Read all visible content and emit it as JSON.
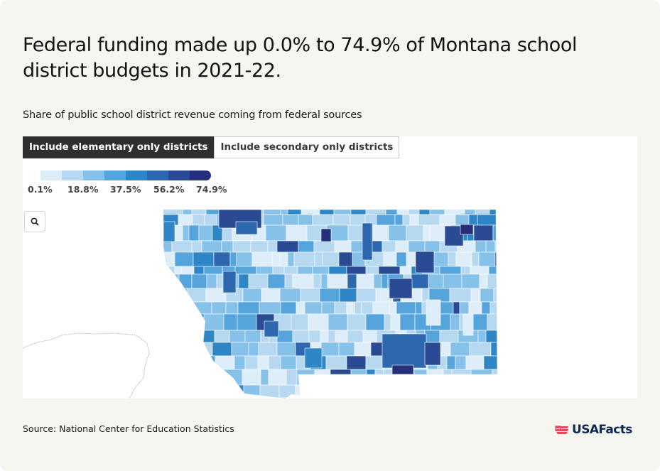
{
  "header": {
    "title": "Federal funding made up 0.0% to 74.9% of Montana school district budgets in 2021-22.",
    "subtitle": "Share of public school district revenue coming from federal sources"
  },
  "tabs": [
    {
      "label": "Include elementary only districts",
      "active": true
    },
    {
      "label": "Include secondary only districts",
      "active": false
    }
  ],
  "legend": {
    "colors": [
      "#deedfa",
      "#b6d9f1",
      "#86c1e9",
      "#55a5dc",
      "#2f86c6",
      "#2d67ae",
      "#2a4b93",
      "#262f7b"
    ],
    "labels": [
      "0.1%",
      "18.8%",
      "37.5%",
      "56.2%",
      "74.9%"
    ]
  },
  "map": {
    "state": "Montana",
    "zoom_icon": "search-icon"
  },
  "footer": {
    "source": "Source: National Center for Education Statistics",
    "brand": "USAFacts",
    "brand_icon": "us-flag-icon"
  }
}
